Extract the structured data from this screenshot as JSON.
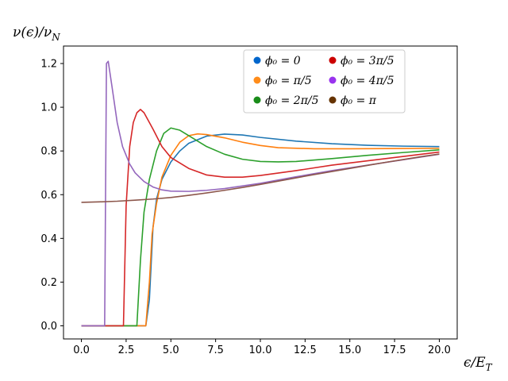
{
  "chart_data": {
    "type": "line",
    "xlabel": "ϵ/E_T",
    "ylabel": "ν(ϵ)/ν_N",
    "xlim": [
      -1.0,
      21.0
    ],
    "ylim": [
      -0.06,
      1.28
    ],
    "xticks": [
      0.0,
      2.5,
      5.0,
      7.5,
      10.0,
      12.5,
      15.0,
      17.5,
      20.0
    ],
    "xtick_labels": [
      "0.0",
      "2.5",
      "5.0",
      "7.5",
      "10.0",
      "12.5",
      "15.0",
      "17.5",
      "20.0"
    ],
    "yticks": [
      0.0,
      0.2,
      0.4,
      0.6,
      0.8,
      1.0,
      1.2
    ],
    "ytick_labels": [
      "0.0",
      "0.2",
      "0.4",
      "0.6",
      "0.8",
      "1.0",
      "1.2"
    ],
    "grid": false,
    "legend_position": "top-center",
    "series": [
      {
        "name": "ϕ₀ = 0",
        "color": "#1f77b4",
        "legend_color": "#0066cc",
        "points": [
          [
            0,
            0
          ],
          [
            3.6,
            0
          ],
          [
            3.8,
            0.12
          ],
          [
            4.0,
            0.45
          ],
          [
            4.2,
            0.58
          ],
          [
            4.5,
            0.67
          ],
          [
            5,
            0.75
          ],
          [
            5.5,
            0.8
          ],
          [
            6,
            0.835
          ],
          [
            7,
            0.868
          ],
          [
            8,
            0.877
          ],
          [
            9,
            0.873
          ],
          [
            10,
            0.862
          ],
          [
            12,
            0.845
          ],
          [
            14,
            0.833
          ],
          [
            16,
            0.826
          ],
          [
            18,
            0.822
          ],
          [
            20,
            0.82
          ]
        ]
      },
      {
        "name": "ϕ₀ = π/5",
        "color": "#ff7f0e",
        "legend_color": "#ff8c1a",
        "points": [
          [
            0,
            0
          ],
          [
            3.6,
            0
          ],
          [
            3.8,
            0.2
          ],
          [
            3.95,
            0.42
          ],
          [
            4.2,
            0.56
          ],
          [
            4.5,
            0.68
          ],
          [
            5,
            0.78
          ],
          [
            5.5,
            0.84
          ],
          [
            6,
            0.87
          ],
          [
            6.5,
            0.878
          ],
          [
            7,
            0.875
          ],
          [
            8,
            0.86
          ],
          [
            9,
            0.84
          ],
          [
            10,
            0.825
          ],
          [
            11,
            0.815
          ],
          [
            13,
            0.81
          ],
          [
            15,
            0.81
          ],
          [
            17,
            0.811
          ],
          [
            20,
            0.812
          ]
        ]
      },
      {
        "name": "ϕ₀ = 2π/5",
        "color": "#2ca02c",
        "legend_color": "#1a8c1a",
        "points": [
          [
            0,
            0
          ],
          [
            3.1,
            0
          ],
          [
            3.3,
            0.3
          ],
          [
            3.5,
            0.52
          ],
          [
            3.8,
            0.67
          ],
          [
            4.2,
            0.8
          ],
          [
            4.6,
            0.88
          ],
          [
            5,
            0.905
          ],
          [
            5.5,
            0.895
          ],
          [
            6,
            0.87
          ],
          [
            7,
            0.82
          ],
          [
            8,
            0.785
          ],
          [
            9,
            0.762
          ],
          [
            10,
            0.752
          ],
          [
            11,
            0.75
          ],
          [
            12,
            0.752
          ],
          [
            14,
            0.765
          ],
          [
            16,
            0.78
          ],
          [
            18,
            0.793
          ],
          [
            20,
            0.805
          ]
        ]
      },
      {
        "name": "ϕ₀ = 3π/5",
        "color": "#d62728",
        "legend_color": "#cc0000",
        "points": [
          [
            0,
            0
          ],
          [
            2.35,
            0
          ],
          [
            2.5,
            0.55
          ],
          [
            2.7,
            0.82
          ],
          [
            2.9,
            0.93
          ],
          [
            3.1,
            0.975
          ],
          [
            3.3,
            0.99
          ],
          [
            3.5,
            0.975
          ],
          [
            4,
            0.9
          ],
          [
            4.5,
            0.82
          ],
          [
            5,
            0.77
          ],
          [
            6,
            0.72
          ],
          [
            7,
            0.69
          ],
          [
            8,
            0.68
          ],
          [
            9,
            0.68
          ],
          [
            10,
            0.688
          ],
          [
            12,
            0.71
          ],
          [
            14,
            0.735
          ],
          [
            16,
            0.755
          ],
          [
            18,
            0.775
          ],
          [
            20,
            0.795
          ]
        ]
      },
      {
        "name": "ϕ₀ = 4π/5",
        "color": "#9467bd",
        "legend_color": "#9933ee",
        "points": [
          [
            0,
            0
          ],
          [
            1.3,
            0
          ],
          [
            1.4,
            1.2
          ],
          [
            1.5,
            1.21
          ],
          [
            1.7,
            1.1
          ],
          [
            2,
            0.93
          ],
          [
            2.3,
            0.82
          ],
          [
            2.7,
            0.74
          ],
          [
            3,
            0.7
          ],
          [
            3.5,
            0.66
          ],
          [
            4,
            0.635
          ],
          [
            4.5,
            0.622
          ],
          [
            5,
            0.616
          ],
          [
            6,
            0.615
          ],
          [
            7,
            0.62
          ],
          [
            8,
            0.628
          ],
          [
            10,
            0.652
          ],
          [
            12,
            0.682
          ],
          [
            14,
            0.71
          ],
          [
            16,
            0.735
          ],
          [
            18,
            0.76
          ],
          [
            20,
            0.785
          ]
        ]
      },
      {
        "name": "ϕ₀ = π",
        "color": "#8c564b",
        "legend_color": "#663300",
        "points": [
          [
            0,
            0.565
          ],
          [
            1,
            0.567
          ],
          [
            2,
            0.57
          ],
          [
            3,
            0.575
          ],
          [
            4,
            0.58
          ],
          [
            5,
            0.587
          ],
          [
            6,
            0.597
          ],
          [
            7,
            0.608
          ],
          [
            8,
            0.62
          ],
          [
            9,
            0.633
          ],
          [
            10,
            0.647
          ],
          [
            11,
            0.662
          ],
          [
            12,
            0.677
          ],
          [
            13,
            0.692
          ],
          [
            14,
            0.706
          ],
          [
            15,
            0.72
          ],
          [
            16,
            0.734
          ],
          [
            17,
            0.748
          ],
          [
            18,
            0.761
          ],
          [
            19,
            0.774
          ],
          [
            20,
            0.786
          ]
        ]
      }
    ]
  }
}
